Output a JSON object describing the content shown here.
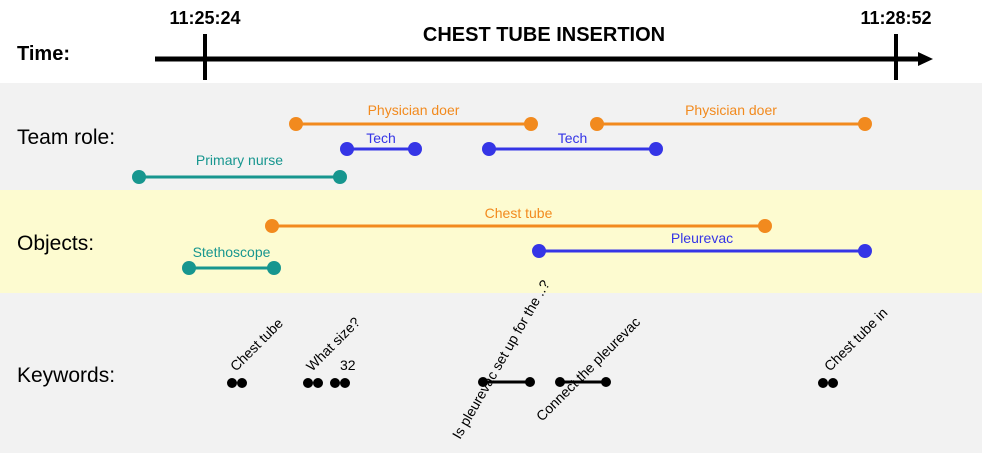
{
  "header": {
    "time_label": "Time:",
    "title": "CHEST TUBE INSERTION",
    "start_time": "11:25:24",
    "end_time": "11:28:52"
  },
  "rows": {
    "team_role": "Team role:",
    "objects": "Objects:",
    "keywords": "Keywords:"
  },
  "colors": {
    "orange": "#f28a1e",
    "blue": "#3535e6",
    "teal": "#17968f",
    "band_grey": "#f2f2f2",
    "band_yellow": "#fdfbd0",
    "black": "#000000"
  },
  "team_role_spans": [
    {
      "label": "Physician doer",
      "color": "orange"
    },
    {
      "label": "Physician doer",
      "color": "orange"
    },
    {
      "label": "Tech",
      "color": "blue"
    },
    {
      "label": "Tech",
      "color": "blue"
    },
    {
      "label": "Primary nurse",
      "color": "teal"
    }
  ],
  "object_spans": [
    {
      "label": "Chest tube",
      "color": "orange"
    },
    {
      "label": "Pleurevac",
      "color": "blue"
    },
    {
      "label": "Stethoscope",
      "color": "teal"
    }
  ],
  "keywords": [
    {
      "label": "Chest tube"
    },
    {
      "label": "What size?"
    },
    {
      "label": "32"
    },
    {
      "label": "Is pleurevac set up for the ..?"
    },
    {
      "label": "Connect the pleurevac"
    },
    {
      "label": "Chest tube in"
    }
  ]
}
